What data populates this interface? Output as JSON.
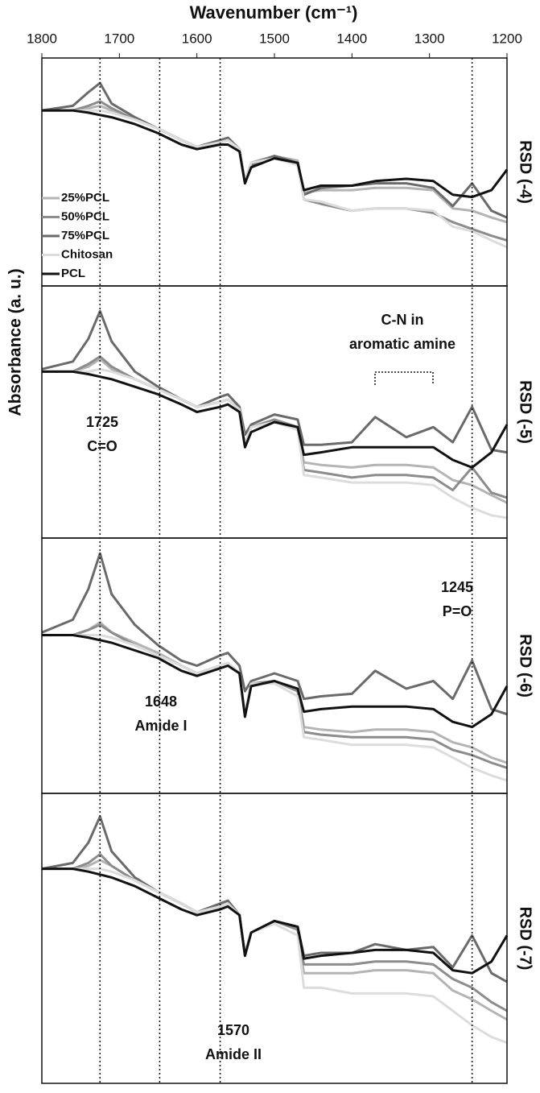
{
  "chart_data": [
    {
      "type": "line",
      "title": "Wavenumber (cm⁻¹)",
      "ylabel": "Absorbance (a. u.)",
      "label": "RSD (-4)",
      "xlim": [
        1800,
        1200
      ],
      "xticks": [
        1800,
        1700,
        1600,
        1500,
        1400,
        1300,
        1200
      ],
      "ylim": [
        0,
        100
      ],
      "vlines": [
        1725,
        1648,
        1570,
        1245
      ],
      "x": [
        1800,
        1760,
        1740,
        1725,
        1710,
        1680,
        1650,
        1620,
        1600,
        1570,
        1560,
        1545,
        1538,
        1530,
        1500,
        1470,
        1462,
        1440,
        1400,
        1370,
        1330,
        1295,
        1270,
        1245,
        1220,
        1200
      ],
      "series": [
        {
          "name": "25%PCL",
          "color": "#b4b4b4",
          "values": [
            77,
            77,
            78,
            79,
            77,
            73,
            69,
            64,
            61,
            63,
            64,
            60,
            46,
            54,
            57,
            55,
            41,
            42,
            42,
            43,
            43,
            42,
            34,
            33,
            30,
            28
          ]
        },
        {
          "name": "50%PCL",
          "color": "#8c8c8c",
          "values": [
            77,
            77,
            79,
            81,
            78,
            73,
            69,
            64,
            61,
            63,
            64,
            60,
            46,
            54,
            57,
            54,
            38,
            36,
            33,
            34,
            34,
            32,
            28,
            25,
            22,
            20
          ]
        },
        {
          "name": "75%PCL",
          "color": "#6a6a6a",
          "values": [
            77,
            79,
            85,
            89,
            80,
            74,
            69,
            64,
            61,
            64,
            65,
            60,
            45,
            53,
            57,
            54,
            40,
            43,
            44,
            45,
            45,
            43,
            35,
            45,
            33,
            30
          ]
        },
        {
          "name": "Chitosan",
          "color": "#dcdcdc",
          "values": [
            77,
            77,
            77,
            77,
            76,
            73,
            69,
            64,
            61,
            63,
            64,
            60,
            46,
            54,
            56,
            53,
            38,
            37,
            33,
            34,
            34,
            33,
            26,
            24,
            20,
            17
          ]
        },
        {
          "name": "PCL",
          "color": "#111111",
          "values": [
            77,
            77,
            76,
            75,
            74,
            71,
            67,
            62,
            60,
            62,
            62,
            59,
            45,
            52,
            56,
            54,
            42,
            44,
            44,
            46,
            47,
            46,
            40,
            39,
            42,
            51
          ]
        }
      ]
    },
    {
      "type": "line",
      "label": "RSD (-5)",
      "xlim": [
        1800,
        1200
      ],
      "ylim": [
        0,
        100
      ],
      "annotations": [
        {
          "text": [
            "C-N in",
            "aromatic amine"
          ]
        },
        {
          "text": [
            "1725",
            "C=O"
          ]
        }
      ],
      "x": [
        1800,
        1760,
        1740,
        1725,
        1710,
        1680,
        1650,
        1620,
        1600,
        1570,
        1560,
        1545,
        1538,
        1530,
        1500,
        1470,
        1462,
        1440,
        1400,
        1370,
        1330,
        1295,
        1270,
        1245,
        1220,
        1200
      ],
      "series": [
        {
          "color": "#b4b4b4",
          "values": [
            66,
            66,
            68,
            71,
            67,
            63,
            59,
            55,
            52,
            54,
            55,
            51,
            37,
            44,
            47,
            44,
            30,
            29,
            28,
            29,
            29,
            28,
            23,
            21,
            17,
            14
          ]
        },
        {
          "color": "#8c8c8c",
          "values": [
            66,
            66,
            69,
            72,
            68,
            63,
            59,
            55,
            52,
            54,
            55,
            51,
            37,
            44,
            47,
            44,
            27,
            26,
            24,
            25,
            25,
            24,
            19,
            28,
            18,
            16
          ]
        },
        {
          "color": "#6a6a6a",
          "values": [
            67,
            70,
            79,
            90,
            78,
            66,
            60,
            55,
            52,
            56,
            57,
            52,
            41,
            45,
            49,
            47,
            37,
            37,
            38,
            48,
            40,
            44,
            38,
            52,
            35,
            34
          ]
        },
        {
          "color": "#dcdcdc",
          "values": [
            66,
            66,
            66,
            67,
            66,
            63,
            59,
            55,
            52,
            54,
            55,
            51,
            37,
            44,
            46,
            43,
            25,
            24,
            22,
            22,
            22,
            21,
            16,
            12,
            9,
            8
          ]
        },
        {
          "color": "#111111",
          "values": [
            66,
            66,
            65,
            64,
            63,
            60,
            57,
            53,
            50,
            52,
            53,
            50,
            36,
            42,
            46,
            44,
            33,
            34,
            36,
            36,
            36,
            36,
            31,
            28,
            34,
            45
          ]
        }
      ]
    },
    {
      "type": "line",
      "label": "RSD (-6)",
      "xlim": [
        1800,
        1200
      ],
      "ylim": [
        0,
        100
      ],
      "annotations": [
        {
          "text": [
            "1245",
            "P=O"
          ]
        },
        {
          "text": [
            "1648",
            "Amide I"
          ]
        }
      ],
      "x": [
        1800,
        1760,
        1740,
        1725,
        1710,
        1680,
        1650,
        1620,
        1600,
        1570,
        1560,
        1545,
        1538,
        1530,
        1500,
        1470,
        1462,
        1440,
        1400,
        1370,
        1330,
        1295,
        1270,
        1245,
        1220,
        1200
      ],
      "series": [
        {
          "color": "#b4b4b4",
          "values": [
            62,
            62,
            64,
            67,
            63,
            59,
            55,
            50,
            47,
            50,
            51,
            47,
            31,
            43,
            44,
            40,
            26,
            25,
            24,
            25,
            25,
            24,
            20,
            18,
            14,
            12
          ]
        },
        {
          "color": "#8c8c8c",
          "values": [
            62,
            62,
            64,
            66,
            63,
            58,
            54,
            50,
            47,
            50,
            51,
            47,
            31,
            43,
            44,
            40,
            24,
            23,
            22,
            22,
            22,
            21,
            17,
            15,
            12,
            10
          ]
        },
        {
          "color": "#6a6a6a",
          "values": [
            63,
            68,
            80,
            94,
            78,
            66,
            58,
            52,
            50,
            54,
            55,
            50,
            40,
            44,
            47,
            44,
            37,
            38,
            39,
            48,
            41,
            44,
            37,
            52,
            33,
            31
          ]
        },
        {
          "color": "#dcdcdc",
          "values": [
            62,
            62,
            62,
            62,
            61,
            58,
            54,
            50,
            47,
            50,
            51,
            47,
            31,
            43,
            43,
            38,
            22,
            21,
            19,
            19,
            19,
            18,
            14,
            10,
            7,
            5
          ]
        },
        {
          "color": "#111111",
          "values": [
            62,
            62,
            61,
            60,
            59,
            56,
            53,
            48,
            46,
            49,
            50,
            47,
            30,
            42,
            44,
            41,
            32,
            33,
            34,
            34,
            34,
            33,
            28,
            26,
            31,
            42
          ]
        }
      ]
    },
    {
      "type": "line",
      "label": "RSD (-7)",
      "xlim": [
        1800,
        1200
      ],
      "ylim": [
        0,
        100
      ],
      "annotations": [
        {
          "text": [
            "1570",
            "Amide II"
          ]
        }
      ],
      "x": [
        1800,
        1760,
        1740,
        1725,
        1710,
        1680,
        1650,
        1620,
        1600,
        1570,
        1560,
        1545,
        1538,
        1530,
        1500,
        1470,
        1462,
        1440,
        1400,
        1370,
        1330,
        1295,
        1270,
        1245,
        1220,
        1200
      ],
      "series": [
        {
          "color": "#b4b4b4",
          "values": [
            74,
            74,
            75,
            77,
            75,
            70,
            66,
            62,
            59,
            61,
            62,
            58,
            45,
            52,
            56,
            53,
            38,
            38,
            38,
            39,
            39,
            38,
            32,
            29,
            25,
            22
          ]
        },
        {
          "color": "#8c8c8c",
          "values": [
            74,
            74,
            76,
            79,
            75,
            70,
            66,
            62,
            59,
            61,
            62,
            58,
            45,
            52,
            56,
            53,
            41,
            41,
            41,
            42,
            42,
            41,
            36,
            33,
            28,
            25
          ]
        },
        {
          "color": "#6a6a6a",
          "values": [
            74,
            76,
            83,
            92,
            80,
            71,
            66,
            62,
            59,
            62,
            63,
            58,
            44,
            52,
            56,
            54,
            44,
            45,
            45,
            48,
            46,
            47,
            40,
            51,
            38,
            35
          ]
        },
        {
          "color": "#dcdcdc",
          "values": [
            74,
            74,
            74,
            74,
            73,
            70,
            66,
            62,
            59,
            61,
            62,
            58,
            45,
            52,
            55,
            51,
            33,
            33,
            31,
            31,
            31,
            30,
            25,
            20,
            16,
            14
          ]
        },
        {
          "color": "#111111",
          "values": [
            74,
            74,
            73,
            72,
            71,
            68,
            64,
            60,
            58,
            60,
            61,
            58,
            44,
            52,
            56,
            54,
            43,
            44,
            45,
            46,
            46,
            45,
            39,
            38,
            42,
            51
          ]
        }
      ]
    }
  ]
}
